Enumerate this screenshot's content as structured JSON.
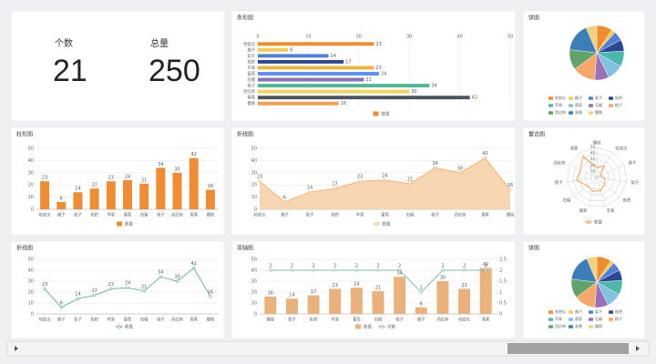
{
  "kpis": [
    {
      "label": "个数",
      "value": 21
    },
    {
      "label": "总量",
      "value": 250
    }
  ],
  "chart_data": [
    {
      "type": "hbar",
      "title": "条形图",
      "categories": [
        "哈密瓜",
        "橘子",
        "梨子",
        "枇杷",
        "苹果",
        "葡萄",
        "石榴",
        "桃子",
        "西红柿",
        "香蕉",
        "樱桃"
      ],
      "series": [
        {
          "name": "数量",
          "color": "#ee8d35",
          "values": [
            23,
            6,
            14,
            17,
            23,
            24,
            21,
            34,
            30,
            42,
            16
          ]
        }
      ],
      "colors": [
        "#f08c2e",
        "#f6cb52",
        "#4f7fd6",
        "#2e4591",
        "#f0b43c",
        "#5b8ff9",
        "#8c6fb5",
        "#4bb89a",
        "#f6d35e",
        "#4a5560",
        "#f0a050"
      ],
      "xlim": [
        0,
        50
      ],
      "xticks": [
        0,
        10,
        20,
        30,
        40,
        50
      ],
      "grid": true
    },
    {
      "type": "pie",
      "title": "饼图",
      "categories": [
        "哈密瓜",
        "橘子",
        "梨子",
        "枇杷",
        "苹果",
        "葡萄",
        "石榴",
        "桃子",
        "西红柿",
        "香蕉",
        "樱桃"
      ],
      "values": [
        23,
        6,
        14,
        17,
        23,
        24,
        21,
        34,
        30,
        42,
        16
      ],
      "colors": [
        "#f08c2e",
        "#f6cb52",
        "#4f7fd6",
        "#2e4591",
        "#4bb8a9",
        "#80c2e0",
        "#9b6fb5",
        "#f5a86a",
        "#62a36a",
        "#3c7fb8",
        "#f2d080"
      ]
    },
    {
      "type": "bar",
      "title": "柱形图",
      "categories": [
        "哈密瓜",
        "橘子",
        "梨子",
        "枇杷",
        "苹果",
        "葡萄",
        "石榴",
        "桃子",
        "西红柿",
        "香蕉",
        "樱桃"
      ],
      "series": [
        {
          "name": "数量",
          "color": "#ee8d35",
          "values": [
            23,
            6,
            14,
            17,
            23,
            24,
            21,
            34,
            30,
            42,
            16
          ]
        }
      ],
      "ylim": [
        0,
        50
      ],
      "yticks": [
        0,
        10,
        20,
        30,
        40,
        50
      ],
      "grid": true
    },
    {
      "type": "area",
      "title": "折线图",
      "categories": [
        "哈密瓜",
        "橘子",
        "梨子",
        "枇杷",
        "苹果",
        "葡萄",
        "石榴",
        "桃子",
        "西红柿",
        "香蕉",
        "樱桃"
      ],
      "series": [
        {
          "name": "数量",
          "color": "#f2b070",
          "values": [
            23,
            6,
            14,
            17,
            23,
            24,
            21,
            34,
            30,
            42,
            16
          ]
        }
      ],
      "ylim": [
        0,
        50
      ],
      "yticks": [
        0,
        10,
        20,
        30,
        40,
        50
      ],
      "grid": true
    },
    {
      "type": "radar",
      "title": "雷达图",
      "categories": [
        "樱桃",
        "香蕉",
        "西红柿",
        "桃子",
        "石榴",
        "葡萄",
        "苹果",
        "枇杷",
        "梨子",
        "橘子",
        "哈密瓜"
      ],
      "series": [
        {
          "name": "数量",
          "color": "#ee8d35",
          "values": [
            16,
            42,
            30,
            34,
            21,
            24,
            23,
            17,
            14,
            6,
            23
          ]
        }
      ],
      "rlim": [
        0,
        50
      ],
      "rticks": [
        10,
        20,
        30,
        40,
        50
      ]
    },
    {
      "type": "line",
      "title": "折线图",
      "categories": [
        "哈密瓜",
        "橘子",
        "梨子",
        "枇杷",
        "苹果",
        "葡萄",
        "石榴",
        "桃子",
        "西红柿",
        "香蕉",
        "樱桃"
      ],
      "series": [
        {
          "name": "数量",
          "color": "#5fae9f",
          "values": [
            23,
            6,
            14,
            17,
            23,
            24,
            21,
            34,
            30,
            42,
            16
          ]
        }
      ],
      "ylim": [
        0,
        50
      ],
      "yticks": [
        0,
        10,
        20,
        30,
        40,
        50
      ],
      "grid": true
    },
    {
      "type": "combo",
      "title": "双轴图",
      "categories": [
        "樱桃",
        "梨子",
        "枇杷",
        "苹果",
        "葡萄",
        "石榴",
        "桃子",
        "橘子",
        "西红柿",
        "哈密瓜",
        "香蕉"
      ],
      "series": [
        {
          "name": "数量",
          "color": "#e9b27c",
          "values": [
            16,
            14,
            17,
            23,
            24,
            21,
            34,
            6,
            30,
            23,
            42
          ]
        },
        {
          "name": "次数",
          "color": "#7fb9b0",
          "values": [
            2,
            2,
            2,
            2,
            2,
            2,
            2,
            1,
            2,
            2,
            2
          ],
          "axis": "y2"
        }
      ],
      "ylim": [
        0,
        50
      ],
      "yticks": [
        0,
        10,
        20,
        30,
        40,
        50
      ],
      "y2lim": [
        0,
        2.5
      ],
      "y2ticks": [
        0,
        0.5,
        1,
        1.5,
        2,
        2.5
      ],
      "grid": true
    },
    {
      "type": "pie",
      "title": "饼图",
      "categories": [
        "哈密瓜",
        "橘子",
        "梨子",
        "枇杷",
        "苹果",
        "葡萄",
        "石榴",
        "桃子",
        "西红柿",
        "香蕉",
        "樱桃"
      ],
      "values": [
        23,
        6,
        14,
        17,
        23,
        24,
        21,
        34,
        30,
        42,
        16
      ],
      "colors": [
        "#f08c2e",
        "#f6cb52",
        "#4f7fd6",
        "#2e4591",
        "#4bb8a9",
        "#80c2e0",
        "#9b6fb5",
        "#f5a86a",
        "#62a36a",
        "#3c7fb8",
        "#f2d080"
      ]
    }
  ]
}
